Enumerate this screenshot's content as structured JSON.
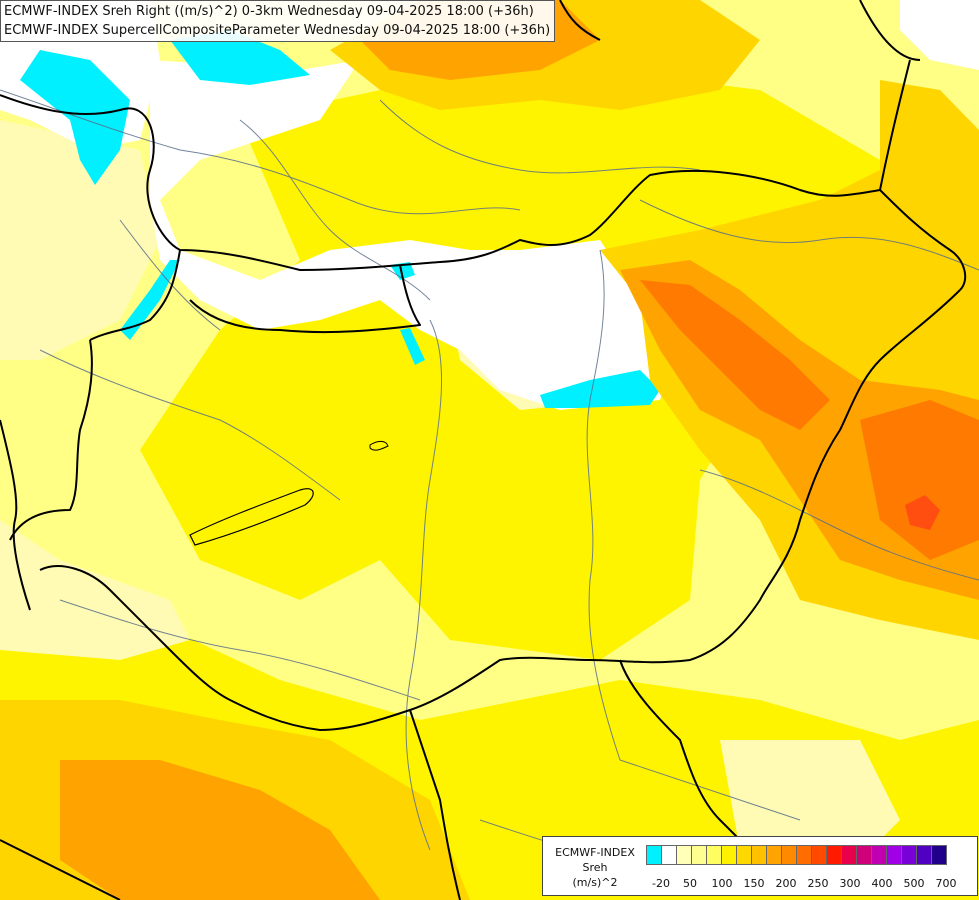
{
  "title_lines": [
    "ECMWF-INDEX Sreh Right ((m/s)^2) 0-3km Wednesday 09-04-2025 18:00 (+36h)",
    "ECMWF-INDEX SupercellCompositeParameter Wednesday 09-04-2025 18:00 (+36h)"
  ],
  "legend": {
    "title_lines": [
      "ECMWF-INDEX",
      "Sreh",
      "(m/s)^2"
    ],
    "swatch_colors": [
      "#00f0ff",
      "#ffffff",
      "#ffffb8",
      "#ffff90",
      "#fffe60",
      "#fff200",
      "#ffd800",
      "#ffc000",
      "#ffa400",
      "#ff8a00",
      "#ff6c00",
      "#ff4a00",
      "#ff1a00",
      "#e8004a",
      "#d0007a",
      "#c000b0",
      "#a000e8",
      "#7a00d8",
      "#5000c0",
      "#20008a"
    ],
    "tick_labels": [
      "-20",
      "50",
      "100",
      "150",
      "200",
      "250",
      "300",
      "400",
      "500",
      "700"
    ]
  },
  "field_colors": {
    "cyan": "#00f0ff",
    "white": "#ffffff",
    "pale": "#fffbb4",
    "light": "#ffff86",
    "yellow": "#fff400",
    "gold": "#ffd500",
    "orange": "#ffa300",
    "dark_orange": "#ff7a00",
    "red_orange": "#ff4e10"
  }
}
